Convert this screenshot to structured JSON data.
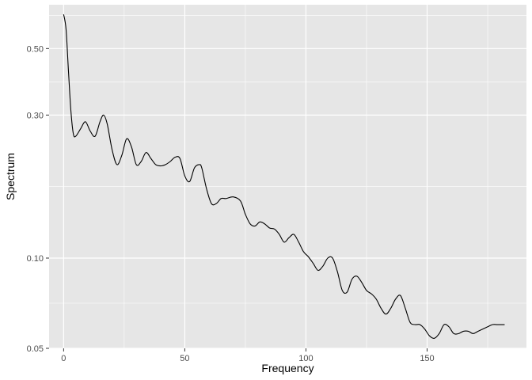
{
  "chart_data": {
    "type": "line",
    "title": "",
    "xlabel": "Frequency",
    "ylabel": "Spectrum",
    "x_axis": {
      "range": [
        -6,
        191
      ],
      "ticks": [
        0,
        50,
        100,
        150
      ],
      "tick_labels": [
        "0",
        "50",
        "100",
        "150"
      ]
    },
    "y_axis": {
      "scale": "log10",
      "range": [
        0.05,
        0.7
      ],
      "ticks": [
        0.05,
        0.1,
        0.3,
        0.5
      ],
      "tick_labels": [
        "0.05",
        "0.10",
        "0.30",
        "0.50"
      ]
    },
    "grid": true,
    "panel_background": "#e6e6e6",
    "grid_color": "#ffffff",
    "line_color": "#000000",
    "series": [
      {
        "x": [
          0,
          1,
          2,
          3,
          4,
          5,
          7,
          9,
          11,
          13,
          15,
          16.5,
          18,
          20,
          22,
          24,
          26,
          28,
          30,
          32,
          34,
          36,
          38,
          40,
          42,
          44,
          46,
          48,
          50,
          52,
          54,
          56,
          57,
          59,
          61,
          63,
          65,
          67,
          70,
          73,
          75,
          77,
          79,
          81,
          83,
          85,
          87,
          89,
          91,
          93,
          95,
          97,
          99,
          101,
          103,
          105,
          107,
          109,
          111,
          113,
          115,
          117,
          119,
          121,
          123,
          125,
          127,
          129,
          131,
          133,
          135,
          137,
          139,
          141,
          143,
          145,
          147,
          149,
          151,
          153,
          155,
          157,
          159,
          161,
          163,
          165,
          167,
          169,
          171,
          173,
          175,
          177,
          179,
          181,
          182
        ],
        "y": [
          0.65,
          0.58,
          0.42,
          0.31,
          0.26,
          0.255,
          0.27,
          0.285,
          0.265,
          0.255,
          0.285,
          0.3,
          0.28,
          0.23,
          0.205,
          0.22,
          0.25,
          0.235,
          0.205,
          0.21,
          0.225,
          0.215,
          0.205,
          0.203,
          0.205,
          0.21,
          0.217,
          0.215,
          0.188,
          0.18,
          0.2,
          0.205,
          0.2,
          0.17,
          0.152,
          0.152,
          0.158,
          0.158,
          0.16,
          0.155,
          0.14,
          0.13,
          0.128,
          0.132,
          0.13,
          0.126,
          0.125,
          0.12,
          0.113,
          0.117,
          0.12,
          0.113,
          0.105,
          0.101,
          0.096,
          0.091,
          0.094,
          0.1,
          0.1,
          0.09,
          0.078,
          0.077,
          0.085,
          0.087,
          0.083,
          0.078,
          0.076,
          0.073,
          0.068,
          0.065,
          0.068,
          0.073,
          0.075,
          0.068,
          0.061,
          0.06,
          0.06,
          0.058,
          0.055,
          0.054,
          0.056,
          0.06,
          0.059,
          0.056,
          0.056,
          0.057,
          0.057,
          0.056,
          0.057,
          0.058,
          0.059,
          0.06,
          0.06,
          0.06,
          0.06
        ]
      }
    ]
  }
}
